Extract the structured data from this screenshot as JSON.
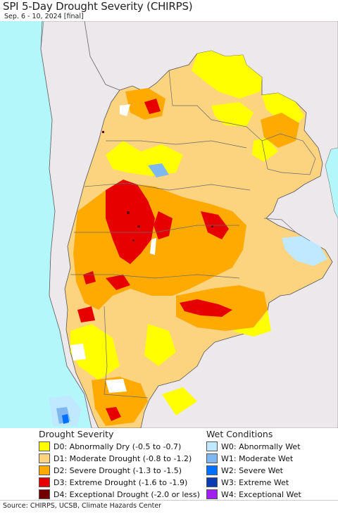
{
  "header": {
    "title": "SPI 5-Day Drought Severity (CHIRPS)",
    "subtitle": "Sep. 6 - 10, 2024 [final]"
  },
  "colors": {
    "ocean": "#b3f7fa",
    "land_outside": "#ece8ec",
    "d0": "#ffff00",
    "d1": "#fcd37f",
    "d2": "#ffaa00",
    "d3": "#e60000",
    "d4": "#730000",
    "w0": "#c0e8ff",
    "w1": "#7fb8f0",
    "w2": "#0070ff",
    "w3": "#0a3cb4",
    "w4": "#a020f0"
  },
  "legend": {
    "drought_heading": "Drought Severity",
    "wet_heading": "Wet Conditions",
    "drought_items": [
      {
        "label": "D0: Abnormally Dry (-0.5 to -0.7)",
        "color": "#ffff00"
      },
      {
        "label": "D1: Moderate Drought (-0.8 to -1.2)",
        "color": "#fcd37f"
      },
      {
        "label": "D2: Severe Drought (-1.3 to -1.5)",
        "color": "#ffaa00"
      },
      {
        "label": "D3: Extreme Drought (-1.6 to -1.9)",
        "color": "#e60000"
      },
      {
        "label": "D4: Exceptional Drought (-2.0 or less)",
        "color": "#730000"
      }
    ],
    "wet_items": [
      {
        "label": "W0: Abnormally Wet",
        "color": "#c0e8ff"
      },
      {
        "label": "W1: Moderate Wet",
        "color": "#7fb8f0"
      },
      {
        "label": "W2: Severe Wet",
        "color": "#0070ff"
      },
      {
        "label": "W3: Extreme Wet",
        "color": "#0a3cb4"
      },
      {
        "label": "W4: Exceptional Wet",
        "color": "#a020f0"
      }
    ]
  },
  "footer": {
    "source": "Source: CHIRPS, UCSB, Climate Hazards Center"
  }
}
